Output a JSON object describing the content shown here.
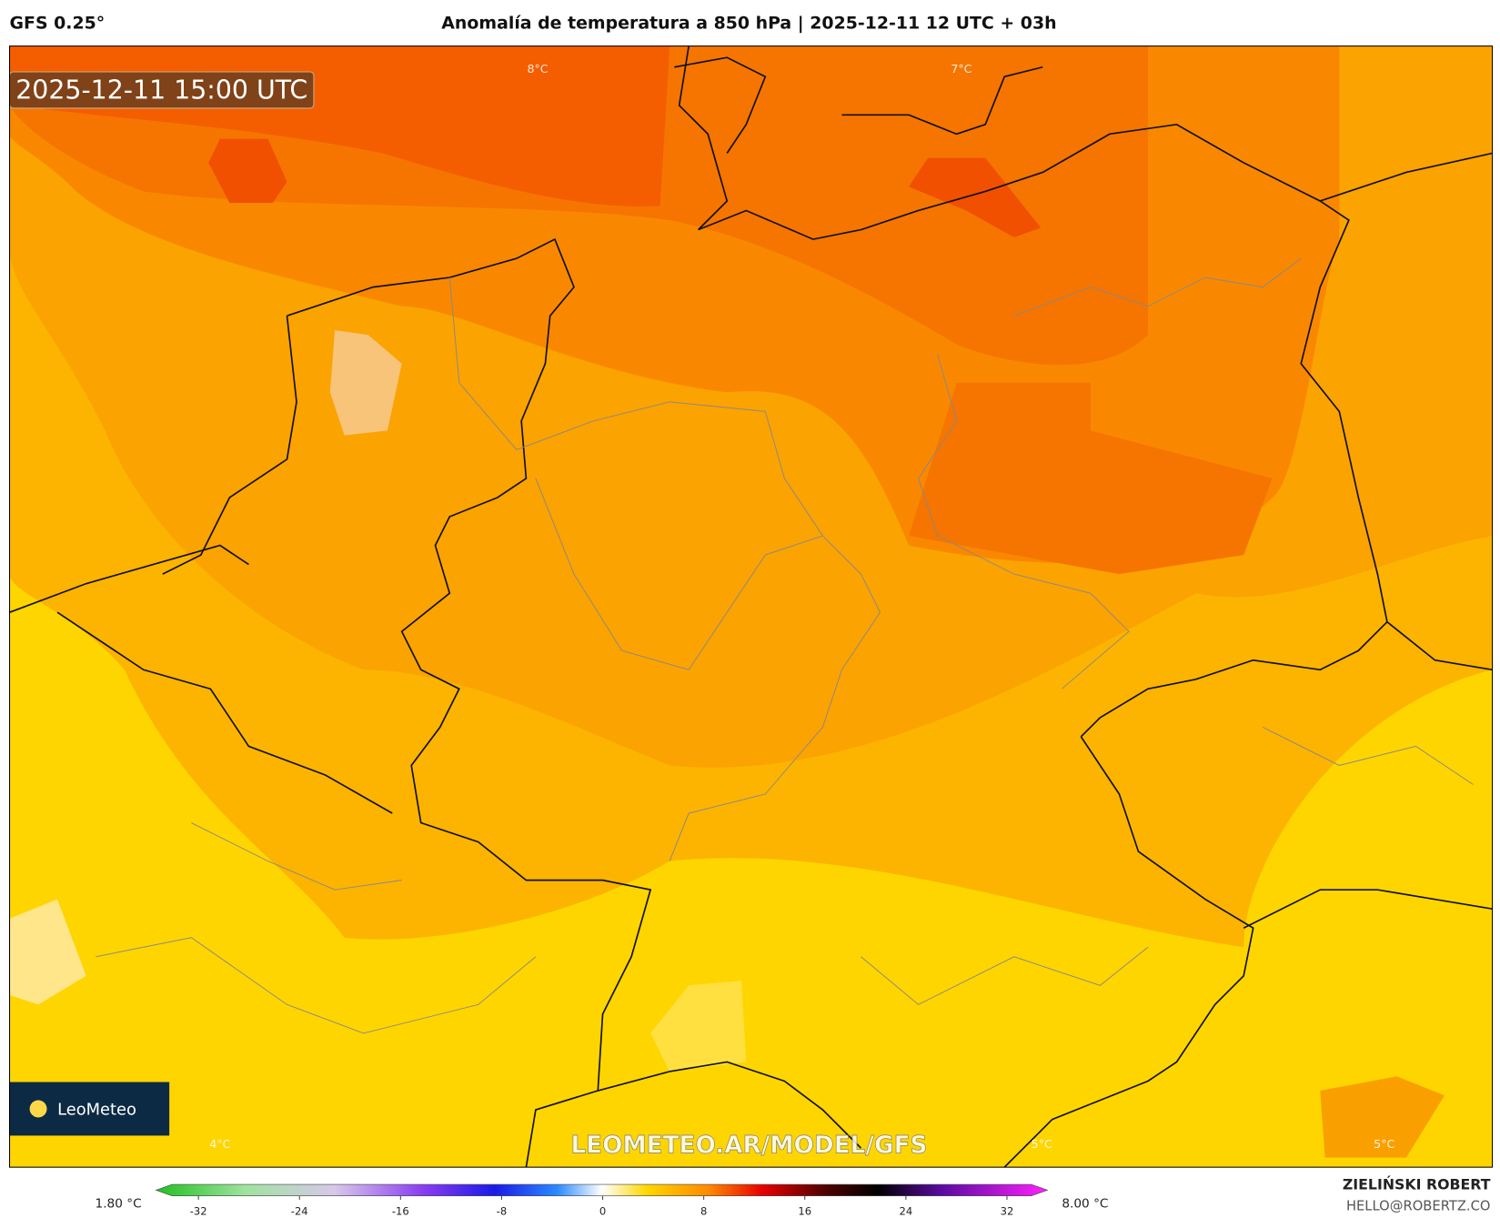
{
  "header": {
    "left": "GFS 0.25°",
    "title": "Anomalía de temperatura a 850 hPa | 2025-12-11 12 UTC + 03h"
  },
  "map": {
    "timestamp": "2025-12-11 15:00 UTC",
    "watermark": "LEOMETEO.AR/MODEL/GFS",
    "logo": "LeoMeteo",
    "labels": [
      "8°C",
      "7°C",
      "4°C",
      "5°C",
      "5°C"
    ]
  },
  "colorbar": {
    "min_label": "1.80 °C",
    "max_label": "8.00 °C",
    "lim": [
      -34,
      34
    ],
    "ticks": [
      -32,
      -24,
      -16,
      -8,
      0,
      8,
      16,
      24,
      32
    ]
  },
  "credits": {
    "name": "ZIELIŃSKI ROBERT",
    "email": "HELLO@ROBERTZ.CO"
  }
}
